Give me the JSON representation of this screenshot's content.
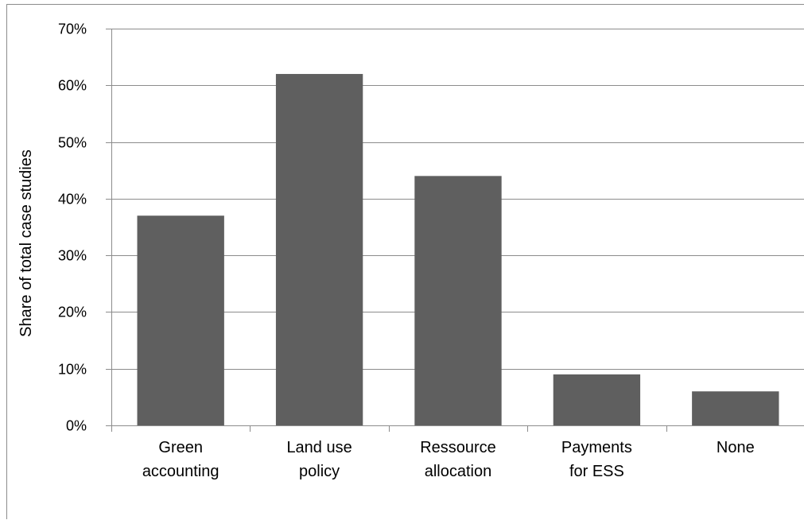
{
  "chart_data": {
    "type": "bar",
    "categories": [
      [
        "Green",
        "accounting"
      ],
      [
        "Land use",
        "policy"
      ],
      [
        "Ressource",
        "allocation"
      ],
      [
        "Payments",
        "for ESS"
      ],
      [
        "None"
      ]
    ],
    "values": [
      0.37,
      0.62,
      0.44,
      0.09,
      0.06
    ],
    "ylabel": "Share of total case  studies",
    "xlabel": "",
    "ylim": [
      0,
      0.7
    ],
    "yticks": [
      0,
      0.1,
      0.2,
      0.3,
      0.4,
      0.5,
      0.6,
      0.7
    ],
    "ytick_labels": [
      "0%",
      "10%",
      "20%",
      "30%",
      "40%",
      "50%",
      "60%",
      "70%"
    ],
    "grid": true,
    "legend": "none",
    "bar_color": "#5f5f5f",
    "grid_color": "#8c8c8c"
  }
}
